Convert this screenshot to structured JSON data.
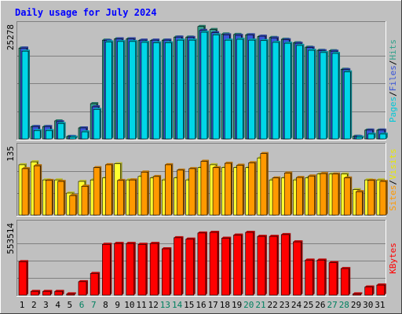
{
  "chart_data": [
    {
      "type": "bar",
      "title": "Daily usage for July 2024",
      "panel": "hits-files-pages",
      "categories": [
        "1",
        "2",
        "3",
        "4",
        "5",
        "6",
        "7",
        "8",
        "9",
        "10",
        "11",
        "12",
        "13",
        "14",
        "15",
        "16",
        "17",
        "18",
        "19",
        "20",
        "21",
        "22",
        "23",
        "24",
        "25",
        "26",
        "27",
        "28",
        "29",
        "30",
        "31"
      ],
      "ymax_label": "25278",
      "ylim": [
        0,
        25278
      ],
      "legend": [
        "Pages",
        "/",
        "Files",
        "/",
        "Hits"
      ],
      "series": [
        {
          "name": "Hits",
          "color": "#33a28b",
          "values": [
            20600,
            2800,
            2800,
            4100,
            550,
            2500,
            8000,
            22400,
            22700,
            22700,
            22300,
            22300,
            22400,
            23100,
            23100,
            25500,
            24800,
            23800,
            23700,
            23600,
            23200,
            23000,
            22600,
            21800,
            20800,
            20100,
            20000,
            15800,
            600,
            2000,
            2000
          ]
        },
        {
          "name": "Files",
          "color": "#3a55d8",
          "values": [
            20600,
            2800,
            2800,
            3900,
            550,
            2500,
            7300,
            22300,
            22700,
            22700,
            22400,
            22400,
            22400,
            23100,
            23000,
            24600,
            24100,
            23600,
            23500,
            23600,
            23300,
            22900,
            22500,
            21700,
            20700,
            20000,
            19900,
            15700,
            550,
            2000,
            2000
          ]
        },
        {
          "name": "Pages",
          "color": "#00d6e8",
          "values": [
            19900,
            1900,
            1900,
            3500,
            400,
            1600,
            6700,
            22000,
            22100,
            22100,
            21900,
            21800,
            21800,
            22400,
            22400,
            24200,
            23600,
            22400,
            22600,
            22400,
            22300,
            21900,
            21700,
            21200,
            20100,
            19600,
            19400,
            15200,
            400,
            1100,
            1100
          ]
        }
      ]
    },
    {
      "type": "bar",
      "panel": "visits-sites",
      "categories": [
        "1",
        "2",
        "3",
        "4",
        "5",
        "6",
        "7",
        "8",
        "9",
        "10",
        "11",
        "12",
        "13",
        "14",
        "15",
        "16",
        "17",
        "18",
        "19",
        "20",
        "21",
        "22",
        "23",
        "24",
        "25",
        "26",
        "27",
        "28",
        "29",
        "30",
        "31"
      ],
      "ymax_label": "135",
      "ylim": [
        0,
        135
      ],
      "legend": [
        "Sites",
        "/",
        "Visits"
      ],
      "series": [
        {
          "name": "Visits",
          "color": "#ffff30",
          "values": [
            103,
            109,
            72,
            72,
            45,
            69,
            72,
            76,
            105,
            72,
            79,
            76,
            72,
            76,
            72,
            97,
            103,
            97,
            97,
            97,
            117,
            72,
            76,
            72,
            76,
            84,
            84,
            84,
            52,
            72,
            72
          ]
        },
        {
          "name": "Sites",
          "color": "#ff9900",
          "values": [
            95,
            101,
            71,
            69,
            40,
            59,
            97,
            103,
            71,
            72,
            88,
            79,
            103,
            92,
            95,
            110,
            97,
            106,
            102,
            107,
            126,
            76,
            86,
            77,
            80,
            85,
            84,
            76,
            48,
            71,
            69
          ]
        }
      ]
    },
    {
      "type": "bar",
      "panel": "kbytes",
      "categories": [
        "1",
        "2",
        "3",
        "4",
        "5",
        "6",
        "7",
        "8",
        "9",
        "10",
        "11",
        "12",
        "13",
        "14",
        "15",
        "16",
        "17",
        "18",
        "19",
        "20",
        "21",
        "22",
        "23",
        "24",
        "25",
        "26",
        "27",
        "28",
        "29",
        "30",
        "31"
      ],
      "ymax_label": "553514",
      "ylim": [
        0,
        553514
      ],
      "legend": [
        "KBytes"
      ],
      "series": [
        {
          "name": "KBytes",
          "color": "#ff0000",
          "values": [
            268000,
            30000,
            30000,
            30000,
            10000,
            108000,
            174000,
            407000,
            414000,
            414000,
            407000,
            414000,
            371000,
            460000,
            449000,
            498000,
            503000,
            456000,
            481000,
            503000,
            471000,
            471000,
            485000,
            427000,
            281000,
            281000,
            260000,
            213000,
            10000,
            65000,
            81000
          ]
        }
      ]
    }
  ],
  "weekend_days": [
    "6",
    "7",
    "13",
    "14",
    "20",
    "21",
    "27",
    "28"
  ],
  "colors": {
    "background": "#c0c0c0",
    "title": "#0000ff",
    "weekday_label": "#000000",
    "weekend_label": "#00805f",
    "gridline": "#808080"
  }
}
